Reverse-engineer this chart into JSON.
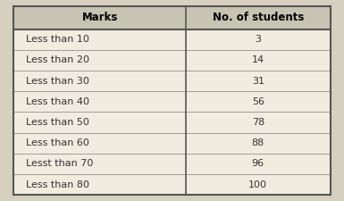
{
  "col1_header": "Marks",
  "col2_header": "No. of students",
  "rows": [
    [
      "Less than 10",
      "3"
    ],
    [
      "Less than 20",
      "14"
    ],
    [
      "Less than 30",
      "31"
    ],
    [
      "Less than 40",
      "56"
    ],
    [
      "Less than 50",
      "78"
    ],
    [
      "Less than 60",
      "88"
    ],
    [
      "Lesst than 70",
      "96"
    ],
    [
      "Less than 80",
      "100"
    ]
  ],
  "background_color": "#d6d0c0",
  "header_bg": "#c8c4b4",
  "table_bg": "#f0ece0",
  "table_border_color": "#555555",
  "header_text_color": "#000000",
  "cell_text_color": "#333333",
  "header_fontsize": 8.5,
  "cell_fontsize": 8.0,
  "header_fontweight": "bold",
  "col_split": 0.54
}
